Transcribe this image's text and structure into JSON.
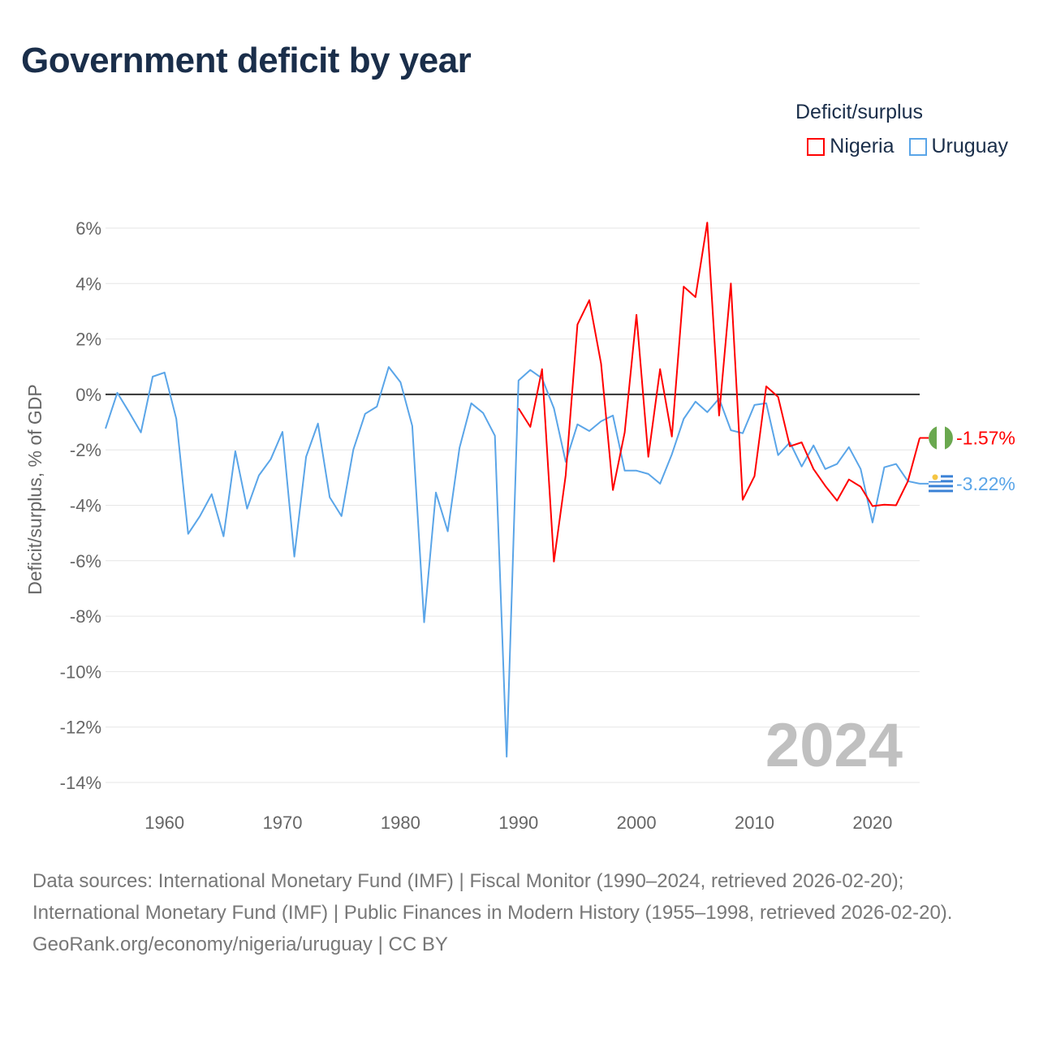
{
  "title": "Government deficit by year",
  "legend": {
    "title": "Deficit/surplus",
    "items": [
      {
        "name": "Nigeria",
        "color": "#ff0000"
      },
      {
        "name": "Uruguay",
        "color": "#5aa5e8"
      }
    ]
  },
  "year_label": "2024",
  "footer": {
    "sources": "Data sources: International Monetary Fund (IMF) | Fiscal Monitor (1990–2024, retrieved 2026-02-20); International Monetary Fund (IMF) | Public Finances in Modern History (1955–1998, retrieved 2026-02-20).",
    "link": "GeoRank.org/economy/nigeria/uruguay | CC BY"
  },
  "chart_data": {
    "type": "line",
    "title": "Government deficit by year",
    "xlabel": "",
    "ylabel": "Deficit/surplus, % of GDP",
    "xlim": [
      1955,
      2024
    ],
    "ylim": [
      -14,
      6
    ],
    "x_ticks": [
      1960,
      1970,
      1980,
      1990,
      2000,
      2010,
      2020
    ],
    "y_ticks": [
      6,
      4,
      2,
      0,
      -2,
      -4,
      -6,
      -8,
      -10,
      -12,
      -14
    ],
    "y_tick_labels": [
      "6%",
      "4%",
      "2%",
      "0%",
      "-2%",
      "-4%",
      "-6%",
      "-8%",
      "-10%",
      "-12%",
      "-14%"
    ],
    "grid": true,
    "legend_position": "top-right",
    "series": [
      {
        "name": "Nigeria",
        "color": "#ff0000",
        "start_year": 1990,
        "end_label": "-1.57%",
        "values": [
          -0.5,
          -1.17,
          0.91,
          -6.03,
          -2.92,
          2.52,
          3.4,
          1.11,
          -3.45,
          -1.37,
          2.87,
          -2.25,
          0.91,
          -1.52,
          3.89,
          3.51,
          6.2,
          -0.76,
          4.0,
          -3.8,
          -2.95,
          0.29,
          -0.09,
          -1.87,
          -1.73,
          -2.69,
          -3.3,
          -3.83,
          -3.07,
          -3.33,
          -4.03,
          -3.98,
          -4.0,
          -3.13,
          -1.57
        ]
      },
      {
        "name": "Uruguay",
        "color": "#5aa5e8",
        "start_year": 1955,
        "end_label": "-3.22%",
        "values": [
          -1.23,
          0.06,
          -0.64,
          -1.37,
          0.64,
          0.79,
          -0.88,
          -5.03,
          -4.39,
          -3.6,
          -5.12,
          -2.05,
          -4.12,
          -2.92,
          -2.34,
          -1.35,
          -5.85,
          -2.25,
          -1.05,
          -3.71,
          -4.39,
          -1.99,
          -0.7,
          -0.44,
          0.99,
          0.44,
          -1.14,
          -8.22,
          -3.54,
          -4.94,
          -1.93,
          -0.32,
          -0.67,
          -1.49,
          -13.07,
          0.5,
          0.88,
          0.58,
          -0.5,
          -2.43,
          -1.08,
          -1.32,
          -0.97,
          -0.76,
          -2.75,
          -2.75,
          -2.87,
          -3.22,
          -2.16,
          -0.88,
          -0.26,
          -0.64,
          -0.15,
          -1.29,
          -1.4,
          -0.38,
          -0.32,
          -2.19,
          -1.73,
          -2.6,
          -1.84,
          -2.69,
          -2.51,
          -1.9,
          -2.69,
          -4.62,
          -2.63,
          -2.51,
          -3.13,
          -3.22
        ]
      }
    ]
  }
}
